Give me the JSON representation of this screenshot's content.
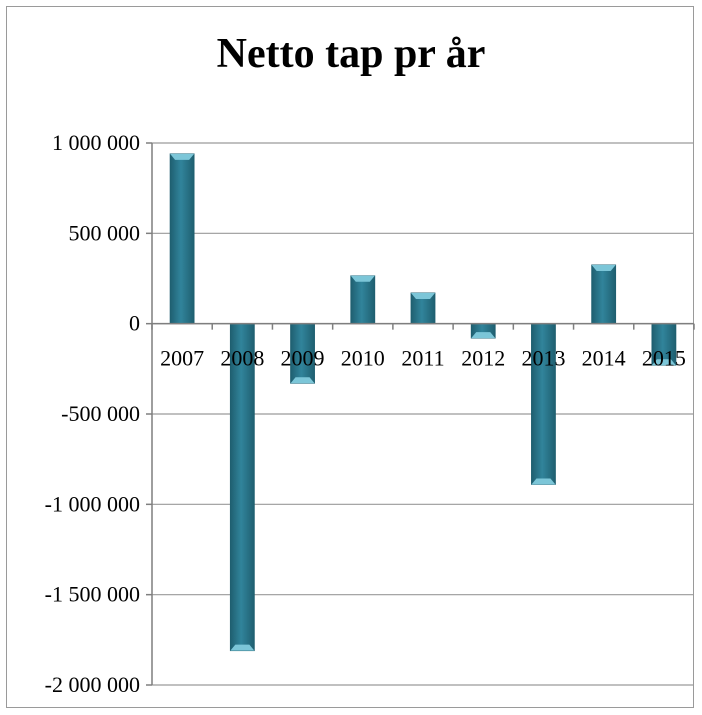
{
  "chart_data": {
    "type": "bar",
    "title": "Netto tap pr år",
    "xlabel": "",
    "ylabel": "",
    "categories": [
      "2007",
      "2008",
      "2009",
      "2010",
      "2011",
      "2012",
      "2013",
      "2014",
      "2015"
    ],
    "values": [
      940000,
      -1810000,
      -330000,
      265000,
      170000,
      -80000,
      -890000,
      325000,
      -230000
    ],
    "ylim": [
      -2000000,
      1000000
    ],
    "yticks": [
      1000000,
      500000,
      0,
      -500000,
      -1000000,
      -1500000,
      -2000000
    ],
    "ytick_labels": [
      "1 000 000",
      "500 000",
      "0",
      "-500 000",
      "-1 000 000",
      "-1 500 000",
      "-2 000 000"
    ],
    "grid": true,
    "legend": "none",
    "colors": {
      "bar_fill": "#31849b",
      "bar_highlight": "#7cc6d8",
      "bar_shadow": "#1f5f70",
      "gridline": "#9a9a9a",
      "axis": "#7f7f7f"
    }
  }
}
